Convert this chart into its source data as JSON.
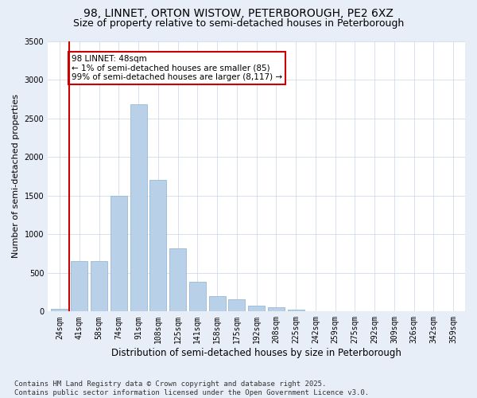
{
  "title1": "98, LINNET, ORTON WISTOW, PETERBOROUGH, PE2 6XZ",
  "title2": "Size of property relative to semi-detached houses in Peterborough",
  "xlabel": "Distribution of semi-detached houses by size in Peterborough",
  "ylabel": "Number of semi-detached properties",
  "categories": [
    "24sqm",
    "41sqm",
    "58sqm",
    "74sqm",
    "91sqm",
    "108sqm",
    "125sqm",
    "141sqm",
    "158sqm",
    "175sqm",
    "192sqm",
    "208sqm",
    "225sqm",
    "242sqm",
    "259sqm",
    "275sqm",
    "292sqm",
    "309sqm",
    "326sqm",
    "342sqm",
    "359sqm"
  ],
  "values": [
    30,
    650,
    650,
    1500,
    2680,
    1700,
    820,
    380,
    200,
    155,
    80,
    50,
    25,
    8,
    4,
    2,
    1,
    0,
    0,
    0,
    0
  ],
  "bar_color": "#b8d0e8",
  "bar_edge_color": "#8ab0d0",
  "vline_x": 0.5,
  "vline_color": "#cc0000",
  "annotation_text": "98 LINNET: 48sqm\n← 1% of semi-detached houses are smaller (85)\n99% of semi-detached houses are larger (8,117) →",
  "annotation_box_color": "white",
  "annotation_border_color": "#cc0000",
  "ylim": [
    0,
    3500
  ],
  "yticks": [
    0,
    500,
    1000,
    1500,
    2000,
    2500,
    3000,
    3500
  ],
  "footer": "Contains HM Land Registry data © Crown copyright and database right 2025.\nContains public sector information licensed under the Open Government Licence v3.0.",
  "bg_color": "#e8eef8",
  "plot_bg_color": "#ffffff",
  "grid_color": "#c8d4e8",
  "title1_fontsize": 10,
  "title2_fontsize": 9,
  "xlabel_fontsize": 8.5,
  "ylabel_fontsize": 8,
  "tick_fontsize": 7,
  "footer_fontsize": 6.5,
  "annot_fontsize": 7.5
}
